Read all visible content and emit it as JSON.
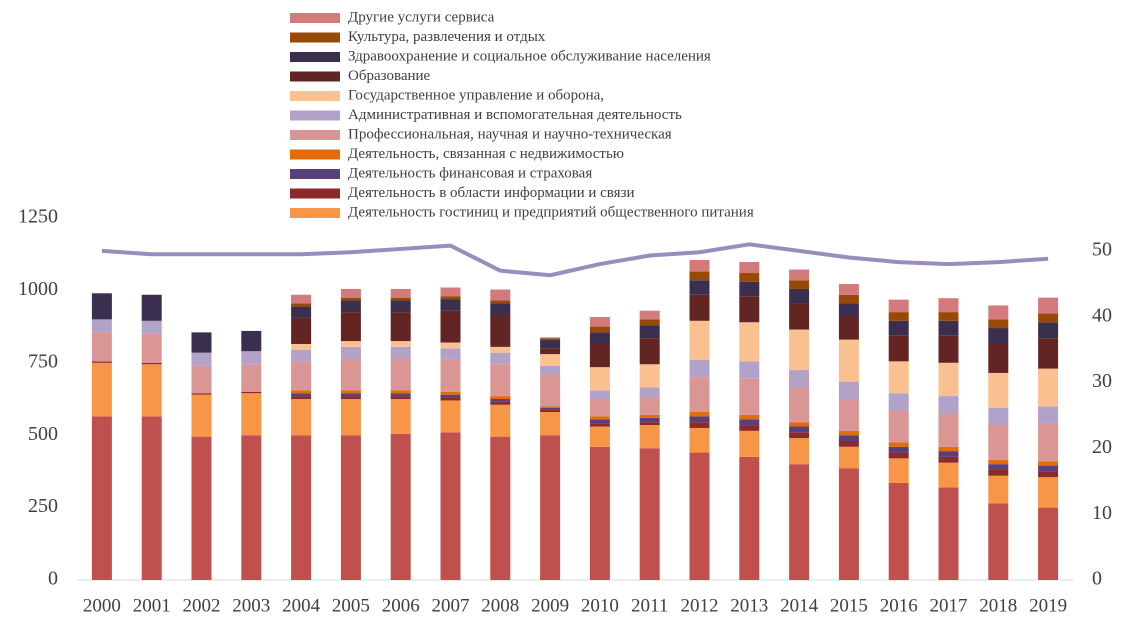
{
  "chart_data": {
    "type": "bar",
    "categories": [
      "2000",
      "2001",
      "2002",
      "2003",
      "2004",
      "2005",
      "2006",
      "2007",
      "2008",
      "2009",
      "2010",
      "2011",
      "2012",
      "2013",
      "2014",
      "2015",
      "2016",
      "2017",
      "2018",
      "2019"
    ],
    "stacked": true,
    "ylim": [
      0,
      1250
    ],
    "yticks": [
      0,
      250,
      500,
      750,
      1000,
      1250
    ],
    "y2lim": [
      0,
      55
    ],
    "y2ticks": [
      0,
      10,
      20,
      30,
      40,
      50
    ],
    "series": [
      {
        "color": "#c0504d",
        "values": [
          565,
          565,
          495,
          500,
          500,
          500,
          505,
          510,
          495,
          500,
          460,
          455,
          440,
          425,
          400,
          385,
          335,
          320,
          265,
          250
        ]
      },
      {
        "name": "Деятельность гостиниц и предприятий общественного питания",
        "color": "#f79646",
        "values": [
          185,
          180,
          145,
          145,
          125,
          125,
          120,
          110,
          110,
          80,
          70,
          80,
          85,
          90,
          90,
          75,
          85,
          85,
          95,
          105
        ]
      },
      {
        "name": "Деятельность в области информации и связи",
        "color": "#8b2a2a",
        "values": [
          5,
          5,
          5,
          5,
          10,
          10,
          10,
          10,
          10,
          10,
          10,
          10,
          20,
          20,
          20,
          20,
          20,
          20,
          20,
          20
        ]
      },
      {
        "name": "Деятельность финансовая и страховая",
        "color": "#5a3f7a",
        "values": [
          0,
          0,
          0,
          0,
          10,
          10,
          10,
          10,
          10,
          5,
          15,
          15,
          20,
          20,
          20,
          20,
          20,
          20,
          20,
          20
        ]
      },
      {
        "name": "Деятельность, связанная с недвижимостью",
        "color": "#e36c09",
        "values": [
          0,
          0,
          0,
          0,
          10,
          10,
          10,
          10,
          10,
          5,
          10,
          10,
          15,
          15,
          15,
          15,
          15,
          15,
          15,
          15
        ]
      },
      {
        "name": "Профессиональная, научная и научно-техническая",
        "color": "#d99694",
        "values": [
          100,
          100,
          95,
          95,
          100,
          110,
          110,
          110,
          110,
          110,
          60,
          60,
          120,
          125,
          120,
          110,
          110,
          115,
          120,
          130
        ]
      },
      {
        "name": "Административная и вспомогательная деятельность",
        "color": "#b3a2c7",
        "values": [
          45,
          45,
          45,
          45,
          40,
          40,
          40,
          40,
          40,
          30,
          30,
          35,
          60,
          60,
          60,
          60,
          60,
          60,
          60,
          60
        ]
      },
      {
        "name": "Государственное управление и оборона,",
        "color": "#fac090",
        "values": [
          0,
          0,
          0,
          0,
          20,
          20,
          20,
          20,
          20,
          40,
          80,
          80,
          135,
          135,
          140,
          145,
          110,
          115,
          120,
          130
        ]
      },
      {
        "name": "Образование",
        "color": "#632523",
        "values": [
          0,
          0,
          0,
          0,
          90,
          100,
          100,
          110,
          110,
          20,
          80,
          90,
          90,
          90,
          90,
          80,
          90,
          95,
          100,
          105
        ]
      },
      {
        "name": " Здравоохранение и социальное обслуживание населения",
        "color": "#3b2f4f",
        "values": [
          90,
          90,
          70,
          70,
          40,
          40,
          40,
          40,
          40,
          30,
          40,
          45,
          50,
          50,
          50,
          45,
          50,
          50,
          55,
          55
        ]
      },
      {
        "name": "Культура, развлечения и отдых",
        "color": "#984807",
        "values": [
          0,
          0,
          0,
          0,
          10,
          10,
          10,
          10,
          10,
          5,
          20,
          20,
          30,
          30,
          30,
          30,
          30,
          30,
          30,
          30
        ]
      },
      {
        "name": "Другие услуги сервиса",
        "color": "#d47a7a",
        "values": [
          0,
          0,
          0,
          0,
          30,
          30,
          30,
          30,
          38,
          3,
          33,
          30,
          40,
          38,
          37,
          37,
          43,
          48,
          48,
          55
        ]
      },
      {
        "type": "line",
        "axis": "y2",
        "color": "#9b8bbf",
        "values": [
          50,
          49.5,
          49.5,
          49.5,
          49.5,
          49.8,
          50.3,
          50.8,
          47,
          46.3,
          48,
          49.3,
          49.8,
          51,
          50,
          49,
          48.3,
          48,
          48.3,
          48.8
        ]
      }
    ]
  }
}
